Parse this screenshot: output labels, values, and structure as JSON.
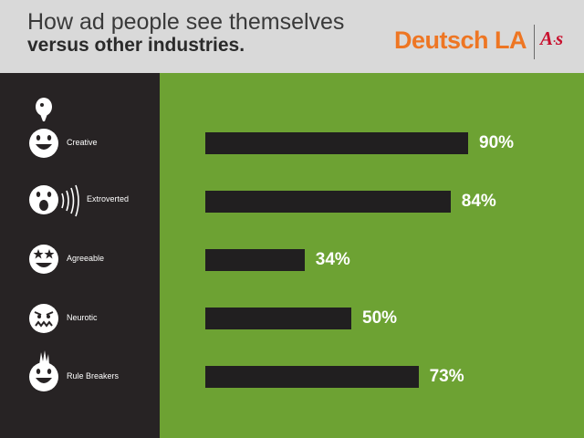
{
  "header": {
    "title_line1": "How ad people see themselves",
    "title_line2": "versus other industries.",
    "brand": "Deutsch LA",
    "partner_logo": "A·s",
    "brand_color": "#ee7623",
    "partner_color": "#c8102e"
  },
  "colors": {
    "background": "#6da233",
    "sidebar": "#272324",
    "bar": "#211f20",
    "label": "#ffffff"
  },
  "chart_data": {
    "type": "bar",
    "orientation": "horizontal",
    "categories": [
      "Creative",
      "Extroverted",
      "Agreeable",
      "Neurotic",
      "Rule Breakers"
    ],
    "values": [
      90,
      84,
      34,
      50,
      73
    ],
    "value_labels": [
      "90%",
      "84%",
      "34%",
      "50%",
      "73%"
    ],
    "icons": [
      "smiley-idea-icon",
      "smiley-shouting-icon",
      "smiley-star-eyes-icon",
      "smiley-worried-icon",
      "smiley-mohawk-icon"
    ],
    "xlim": [
      0,
      100
    ],
    "title": "How ad people see themselves versus other industries.",
    "grid": false,
    "legend": "none"
  }
}
